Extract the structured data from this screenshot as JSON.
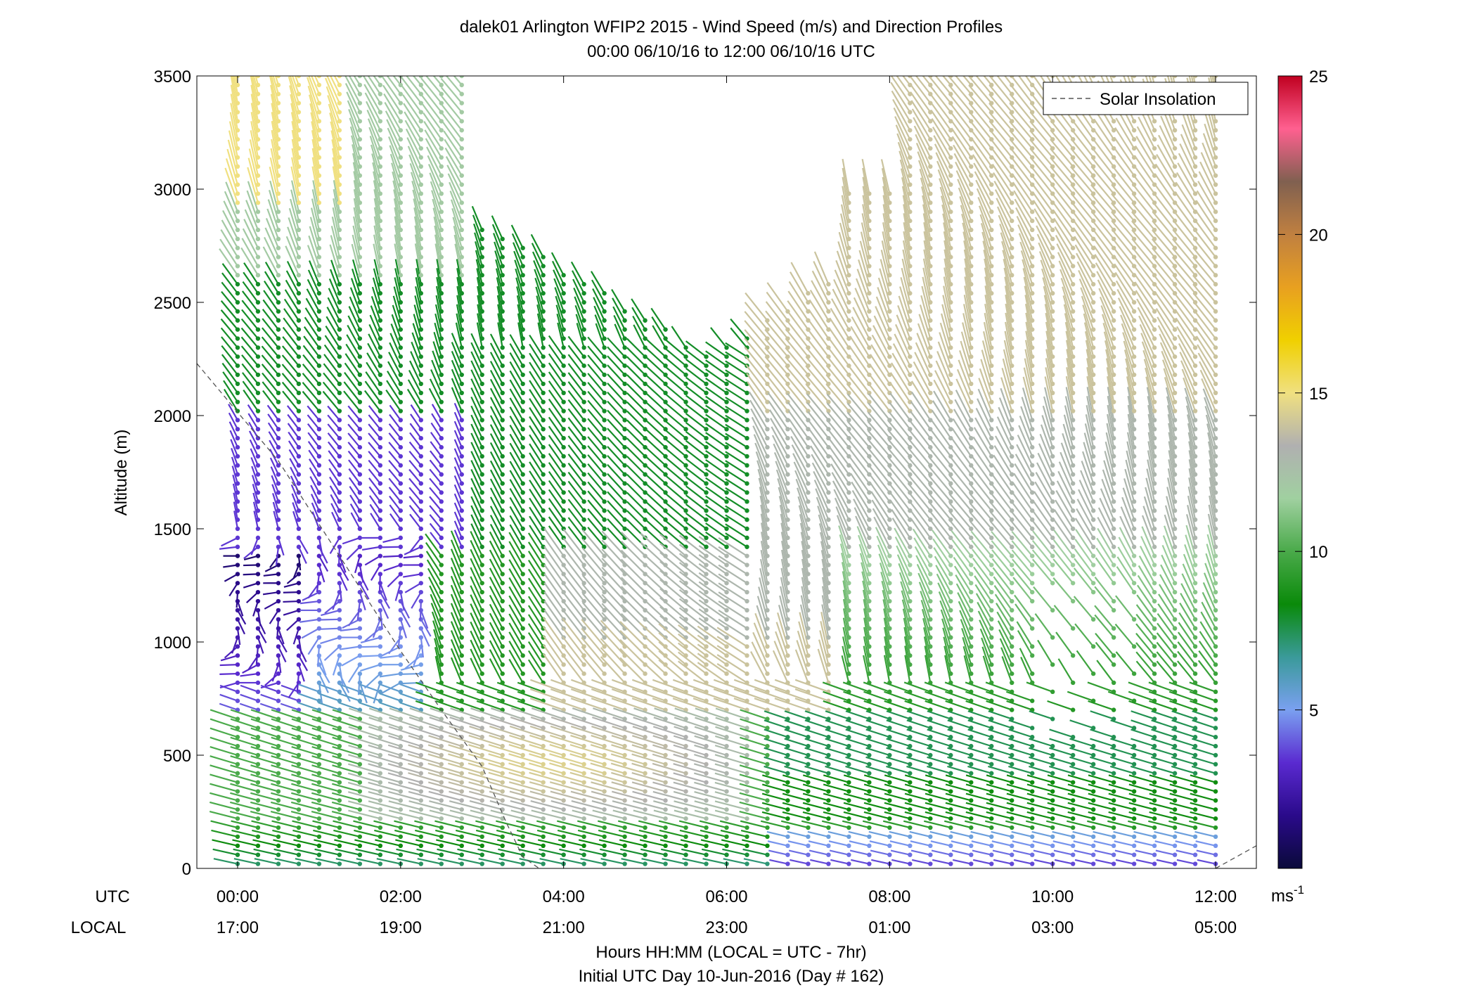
{
  "title": {
    "line1": "dalek01 Arlington WFIP2 2015 - Wind Speed (m/s) and Direction Profiles",
    "line2": "00:00 06/10/16 to 12:00 06/10/16  UTC"
  },
  "axes": {
    "ylabel": "Altitude (m)",
    "utc_row_label": "UTC",
    "local_row_label": "LOCAL",
    "xlabel_line1": "Hours HH:MM  (LOCAL = UTC - 7hr)",
    "xlabel_line2": "Initial UTC Day 10-Jun-2016 (Day # 162)"
  },
  "legend": {
    "entry": "Solar Insolation",
    "placement": "top-right"
  },
  "colorbar": {
    "unit_base": "ms",
    "unit_exp": "-1",
    "ticks": [
      "5",
      "10",
      "15",
      "20",
      "25"
    ],
    "range": [
      0,
      25
    ],
    "stops": [
      "#0a0a3a",
      "#2a0a8a",
      "#5a2ad0",
      "#7aa0f0",
      "#3a9a9a",
      "#0a8a0a",
      "#4aaa4a",
      "#a0d0a0",
      "#b0b0b0",
      "#f0e080",
      "#f0d000",
      "#e8a020",
      "#c08040",
      "#806050",
      "#ff6090",
      "#c00020"
    ]
  },
  "chart_data": {
    "type": "wind-barb-profile",
    "title": "dalek01 Arlington WFIP2 2015 - Wind Speed (m/s) and Direction Profiles",
    "subtitle": "00:00 06/10/16 to 12:00 06/10/16  UTC",
    "xlabel": "Hours HH:MM  (LOCAL = UTC - 7hr)",
    "ylabel": "Altitude (m)",
    "xlim": [
      -0.5,
      12.5
    ],
    "ylim": [
      0,
      3500
    ],
    "yticks": [
      0,
      500,
      1000,
      1500,
      2000,
      2500,
      3000,
      3500
    ],
    "xticks_utc": [
      "00:00",
      "02:00",
      "04:00",
      "06:00",
      "08:00",
      "10:00",
      "12:00"
    ],
    "xticks_local": [
      "17:00",
      "19:00",
      "21:00",
      "23:00",
      "01:00",
      "03:00",
      "05:00"
    ],
    "xtick_hours": [
      0,
      2,
      4,
      6,
      8,
      10,
      12
    ],
    "colorbar_label": "ms-1",
    "colorbar_range": [
      0,
      25
    ],
    "series": [
      {
        "name": "Solar Insolation",
        "style": "dashed",
        "color": "#555555",
        "x": [
          -0.5,
          0.5,
          1.0,
          1.5,
          2.0,
          2.5,
          3.0,
          3.3,
          3.5,
          3.7
        ],
        "y": [
          2230,
          1800,
          1520,
          1240,
          960,
          700,
          450,
          200,
          50,
          0
        ]
      },
      {
        "name": "Solar Insolation",
        "style": "dashed",
        "color": "#555555",
        "x": [
          12.0,
          12.5
        ],
        "y": [
          0,
          100
        ]
      }
    ],
    "wind_profiles": {
      "time_step_hr": 0.25,
      "altitude_step_m": 40,
      "note_units": "speed m/s"
    }
  }
}
